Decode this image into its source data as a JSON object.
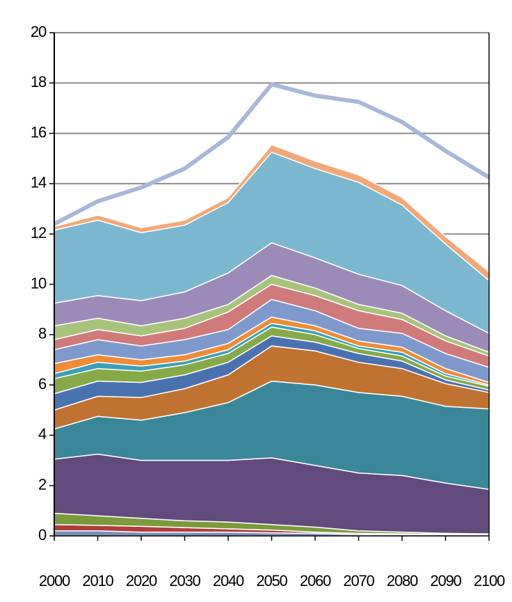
{
  "chart_data": {
    "type": "area",
    "stacked": true,
    "x": [
      2000,
      2010,
      2020,
      2030,
      2040,
      2050,
      2060,
      2070,
      2080,
      2090,
      2100
    ],
    "xlim": [
      2000,
      2100
    ],
    "xticks": [
      2000,
      2010,
      2020,
      2030,
      2040,
      2050,
      2060,
      2070,
      2080,
      2090,
      2100
    ],
    "ylim": [
      0,
      20
    ],
    "yticks": [
      0,
      2,
      4,
      6,
      8,
      10,
      12,
      14,
      16,
      18,
      20
    ],
    "grid": true,
    "series": [
      {
        "color": "#7a8fb8",
        "values": [
          0.2,
          0.2,
          0.15,
          0.15,
          0.15,
          0.12,
          0.1,
          0.05,
          0.05,
          0.05,
          0.03
        ]
      },
      {
        "color": "#b03c3c",
        "values": [
          0.25,
          0.22,
          0.23,
          0.18,
          0.13,
          0.11,
          0.05,
          0.05,
          0.03,
          0.02,
          0.02
        ]
      },
      {
        "color": "#7a9a3c",
        "values": [
          0.45,
          0.38,
          0.32,
          0.27,
          0.27,
          0.22,
          0.2,
          0.1,
          0.07,
          0.03,
          0.03
        ]
      },
      {
        "color": "#634a7d",
        "values": [
          2.15,
          2.45,
          2.3,
          2.4,
          2.45,
          2.65,
          2.45,
          2.3,
          2.25,
          2.0,
          1.77
        ]
      },
      {
        "color": "#3a8799",
        "values": [
          1.2,
          1.5,
          1.6,
          1.9,
          2.3,
          3.05,
          3.2,
          3.2,
          3.15,
          3.05,
          3.2
        ]
      },
      {
        "color": "#c07230",
        "values": [
          0.75,
          0.8,
          0.9,
          0.95,
          1.1,
          1.4,
          1.35,
          1.2,
          1.1,
          0.9,
          0.65
        ]
      },
      {
        "color": "#4a72b0",
        "values": [
          0.65,
          0.6,
          0.6,
          0.55,
          0.5,
          0.4,
          0.35,
          0.35,
          0.3,
          0.15,
          0.1
        ]
      },
      {
        "color": "#86aa48",
        "values": [
          0.6,
          0.5,
          0.45,
          0.4,
          0.35,
          0.35,
          0.3,
          0.2,
          0.2,
          0.15,
          0.15
        ]
      },
      {
        "color": "#3aa0b8",
        "values": [
          0.2,
          0.25,
          0.2,
          0.15,
          0.15,
          0.15,
          0.15,
          0.1,
          0.15,
          0.1,
          0.05
        ]
      },
      {
        "color": "#ee8c38",
        "values": [
          0.4,
          0.3,
          0.25,
          0.25,
          0.25,
          0.25,
          0.2,
          0.2,
          0.2,
          0.2,
          0.1
        ]
      },
      {
        "color": "#7e9acc",
        "values": [
          0.55,
          0.6,
          0.55,
          0.6,
          0.55,
          0.7,
          0.6,
          0.5,
          0.55,
          0.6,
          0.6
        ]
      },
      {
        "color": "#d07a7a",
        "values": [
          0.4,
          0.4,
          0.4,
          0.45,
          0.7,
          0.6,
          0.6,
          0.7,
          0.55,
          0.5,
          0.45
        ]
      },
      {
        "color": "#a8c47c",
        "values": [
          0.55,
          0.45,
          0.4,
          0.4,
          0.3,
          0.35,
          0.3,
          0.25,
          0.25,
          0.2,
          0.15
        ]
      },
      {
        "color": "#9c8ab8",
        "values": [
          0.9,
          0.9,
          1.0,
          1.05,
          1.25,
          1.3,
          1.2,
          1.2,
          1.1,
          1.0,
          0.75
        ]
      },
      {
        "color": "#7bb8d0",
        "values": [
          2.9,
          3.0,
          2.7,
          2.65,
          2.8,
          3.6,
          3.55,
          3.65,
          3.2,
          2.65,
          2.1
        ]
      },
      {
        "color": "#f4a878",
        "values": [
          0.15,
          0.2,
          0.2,
          0.2,
          0.2,
          0.3,
          0.3,
          0.3,
          0.3,
          0.3,
          0.35
        ]
      },
      {
        "type": "line",
        "color": "#a8b8d8",
        "values": [
          12.4,
          13.3,
          13.85,
          14.6,
          15.85,
          17.95,
          17.5,
          17.25,
          16.45,
          15.3,
          14.25
        ]
      }
    ]
  }
}
